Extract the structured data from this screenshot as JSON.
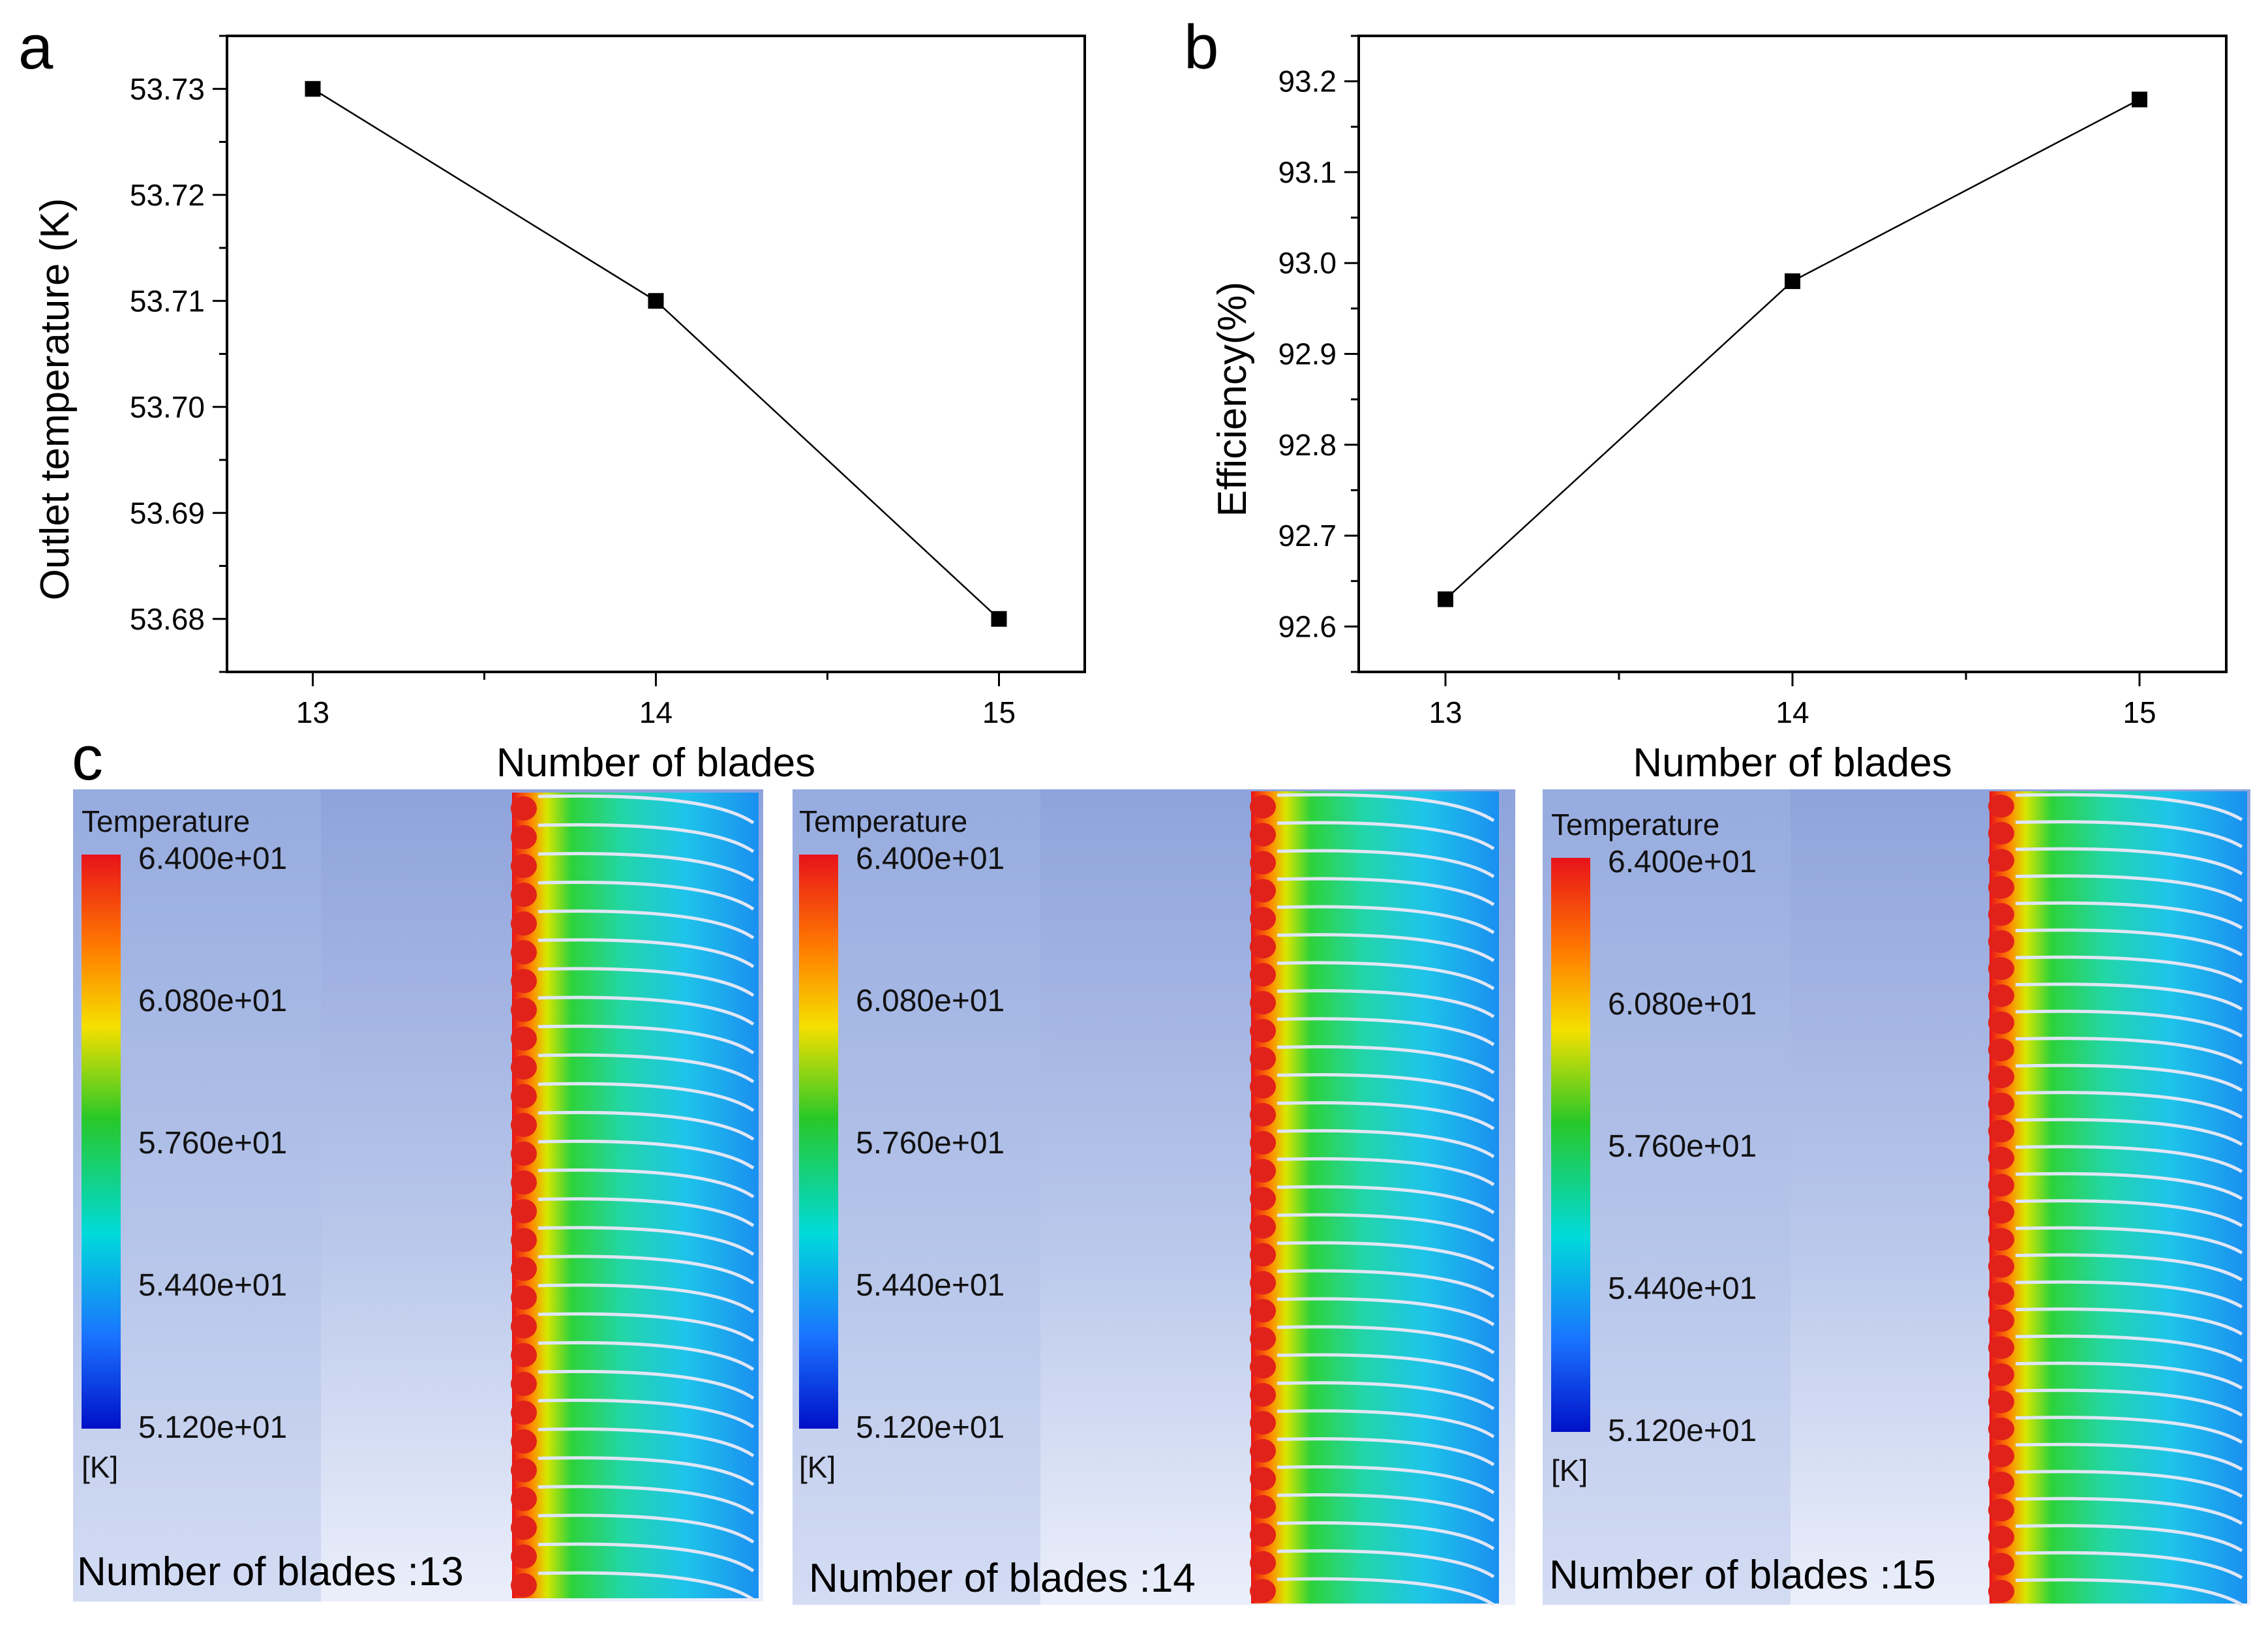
{
  "panels": {
    "a": "a",
    "b": "b",
    "c": "c"
  },
  "chart_data": [
    {
      "id": "a",
      "type": "line",
      "title": "",
      "xlabel": "Number of blades",
      "ylabel": "Outlet temperature (K)",
      "x": [
        13,
        14,
        15
      ],
      "values": [
        53.73,
        53.71,
        53.68
      ],
      "xticks": [
        "13",
        "14",
        "15"
      ],
      "yticks": [
        "53.68",
        "53.69",
        "53.70",
        "53.71",
        "53.72",
        "53.73"
      ],
      "xlim": [
        12.75,
        15.25
      ],
      "ylim": [
        53.675,
        53.735
      ],
      "marker": "square",
      "grid": false
    },
    {
      "id": "b",
      "type": "line",
      "title": "",
      "xlabel": "Number of blades",
      "ylabel": "Efficiency(%)",
      "x": [
        13,
        14,
        15
      ],
      "values": [
        92.63,
        92.98,
        93.18
      ],
      "xticks": [
        "13",
        "14",
        "15"
      ],
      "yticks": [
        "92.6",
        "92.7",
        "92.8",
        "92.9",
        "93.0",
        "93.1",
        "93.2"
      ],
      "xlim": [
        12.75,
        15.25
      ],
      "ylim": [
        92.55,
        93.25
      ],
      "marker": "square",
      "grid": false
    }
  ],
  "contours": {
    "colorbar_title": "Temperature",
    "unit": "[K]",
    "ticks": [
      "6.400e+01",
      "6.080e+01",
      "5.760e+01",
      "5.440e+01",
      "5.120e+01"
    ],
    "colormap": [
      "#e8121a",
      "#ff7a00",
      "#f5e000",
      "#28c828",
      "#00dada",
      "#1a73ff",
      "#0010c8"
    ],
    "items": [
      {
        "caption": "Number of blades :13",
        "blades": 13
      },
      {
        "caption": "Number of blades :14",
        "blades": 14
      },
      {
        "caption": "Number of blades :15",
        "blades": 15
      }
    ]
  }
}
